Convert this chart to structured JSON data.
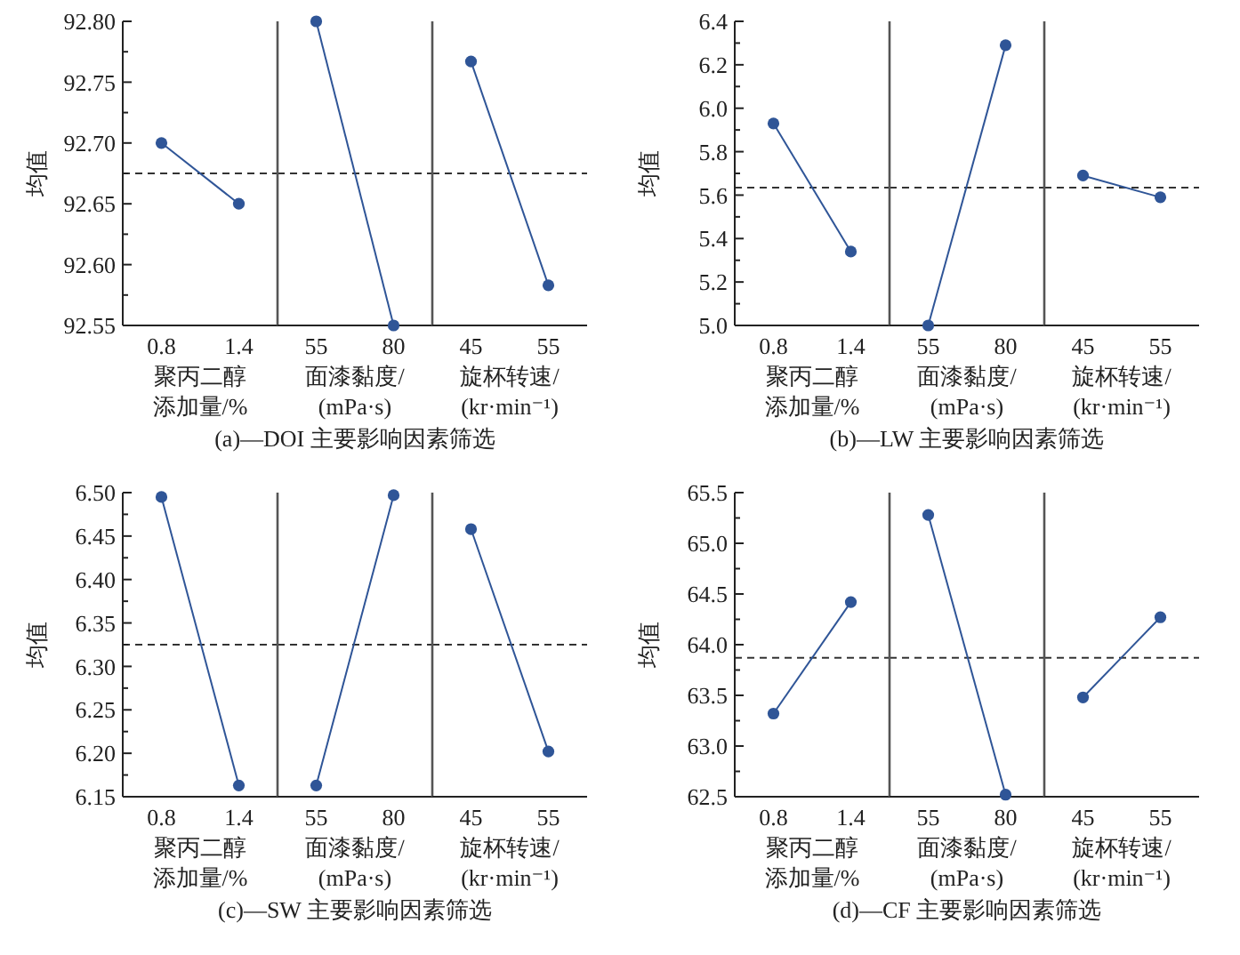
{
  "chart_data": [
    {
      "type": "line",
      "categories": [
        "0.8",
        "1.4"
      ],
      "values": [
        92.7,
        92.65
      ],
      "color": "#2f5597",
      "marker": "circle",
      "ylim": [
        92.55,
        92.8
      ],
      "yticks": [
        92.55,
        {
          "value": 92.575,
          "label": null
        },
        {
          "value": 92.6,
          "label": "92.60"
        },
        {
          "value": 92.625,
          "label": null
        },
        92.65,
        {
          "value": 92.675,
          "label": null
        },
        {
          "value": 92.7,
          "label": "92.70"
        },
        {
          "value": 92.725,
          "label": null
        },
        92.75,
        {
          "value": 92.775,
          "label": null
        },
        {
          "value": 92.8,
          "label": "92.80"
        }
      ],
      "ylabel": "均值",
      "xlabel": "聚丙二醇添加量/%",
      "ref_lines": [
        {
          "axis": "y",
          "value": 92.675,
          "color": "#333333",
          "line_style": "dashed"
        }
      ]
    },
    {
      "type": "line",
      "categories": [
        "55",
        "80"
      ],
      "values": [
        92.8,
        92.55
      ],
      "color": "#2f5597",
      "marker": "circle",
      "ylim": [
        92.55,
        92.8
      ],
      "tick_labels": "x",
      "xlabel": "面漆黏度/(mPa·s)",
      "annotations": [
        "(a)—DOI 主要影响因素筛选"
      ],
      "ref_lines": [
        {
          "axis": "y",
          "value": 92.675,
          "color": "#333333",
          "line_style": "dashed"
        }
      ]
    },
    {
      "type": "line",
      "categories": [
        "45",
        "55"
      ],
      "values": [
        92.767,
        92.583
      ],
      "color": "#2f5597",
      "marker": "circle",
      "ylim": [
        92.55,
        92.8
      ],
      "tick_labels": "x",
      "xlabel": "旋杯转速/(kr·min⁻¹)",
      "ref_lines": [
        {
          "axis": "y",
          "value": 92.675,
          "color": "#333333",
          "line_style": "dashed"
        }
      ]
    },
    {
      "type": "line",
      "categories": [
        "0.8",
        "1.4"
      ],
      "values": [
        5.93,
        5.34
      ],
      "color": "#2f5597",
      "marker": "circle",
      "ylim": [
        5.0,
        6.4
      ],
      "yticks": [
        {
          "value": 5.0,
          "label": "5.0"
        },
        {
          "value": 5.1,
          "label": null
        },
        5.2,
        {
          "value": 5.3,
          "label": null
        },
        5.4,
        {
          "value": 5.5,
          "label": null
        },
        5.6,
        {
          "value": 5.7,
          "label": null
        },
        5.8,
        {
          "value": 5.9,
          "label": null
        },
        {
          "value": 6.0,
          "label": "6.0"
        },
        {
          "value": 6.1,
          "label": null
        },
        6.2,
        {
          "value": 6.3,
          "label": null
        },
        6.4
      ],
      "ylabel": "均值",
      "xlabel": "聚丙二醇添加量/%",
      "ref_lines": [
        {
          "axis": "y",
          "value": 5.635,
          "color": "#333333",
          "line_style": "dashed"
        }
      ]
    },
    {
      "type": "line",
      "categories": [
        "55",
        "80"
      ],
      "values": [
        5.0,
        6.29
      ],
      "color": "#2f5597",
      "marker": "circle",
      "ylim": [
        5.0,
        6.4
      ],
      "tick_labels": "x",
      "xlabel": "面漆黏度/(mPa·s)",
      "annotations": [
        "(b)—LW 主要影响因素筛选"
      ],
      "ref_lines": [
        {
          "axis": "y",
          "value": 5.635,
          "color": "#333333",
          "line_style": "dashed"
        }
      ]
    },
    {
      "type": "line",
      "categories": [
        "45",
        "55"
      ],
      "values": [
        5.69,
        5.59
      ],
      "color": "#2f5597",
      "marker": "circle",
      "ylim": [
        5.0,
        6.4
      ],
      "tick_labels": "x",
      "xlabel": "旋杯转速/(kr·min⁻¹)",
      "ref_lines": [
        {
          "axis": "y",
          "value": 5.635,
          "color": "#333333",
          "line_style": "dashed"
        }
      ]
    },
    {
      "type": "line",
      "categories": [
        "0.8",
        "1.4"
      ],
      "values": [
        6.495,
        6.163
      ],
      "color": "#2f5597",
      "marker": "circle",
      "ylim": [
        6.15,
        6.5
      ],
      "yticks": [
        6.15,
        {
          "value": 6.175,
          "label": null
        },
        {
          "value": 6.2,
          "label": "6.20"
        },
        {
          "value": 6.225,
          "label": null
        },
        6.25,
        {
          "value": 6.275,
          "label": null
        },
        {
          "value": 6.3,
          "label": "6.30"
        },
        {
          "value": 6.325,
          "label": null
        },
        6.35,
        {
          "value": 6.375,
          "label": null
        },
        {
          "value": 6.4,
          "label": "6.40"
        },
        {
          "value": 6.425,
          "label": null
        },
        6.45,
        {
          "value": 6.475,
          "label": null
        },
        {
          "value": 6.5,
          "label": "6.50"
        }
      ],
      "ylabel": "均值",
      "xlabel": "聚丙二醇添加量/%",
      "ref_lines": [
        {
          "axis": "y",
          "value": 6.325,
          "color": "#333333",
          "line_style": "dashed"
        }
      ]
    },
    {
      "type": "line",
      "categories": [
        "55",
        "80"
      ],
      "values": [
        6.163,
        6.497
      ],
      "color": "#2f5597",
      "marker": "circle",
      "ylim": [
        6.15,
        6.5
      ],
      "tick_labels": "x",
      "xlabel": "面漆黏度/(mPa·s)",
      "annotations": [
        "(c)—SW 主要影响因素筛选"
      ],
      "ref_lines": [
        {
          "axis": "y",
          "value": 6.325,
          "color": "#333333",
          "line_style": "dashed"
        }
      ]
    },
    {
      "type": "line",
      "categories": [
        "45",
        "55"
      ],
      "values": [
        6.458,
        6.202
      ],
      "color": "#2f5597",
      "marker": "circle",
      "ylim": [
        6.15,
        6.5
      ],
      "tick_labels": "x",
      "xlabel": "旋杯转速/(kr·min⁻¹)",
      "ref_lines": [
        {
          "axis": "y",
          "value": 6.325,
          "color": "#333333",
          "line_style": "dashed"
        }
      ]
    },
    {
      "type": "line",
      "categories": [
        "0.8",
        "1.4"
      ],
      "values": [
        63.32,
        64.42
      ],
      "color": "#2f5597",
      "marker": "circle",
      "ylim": [
        62.5,
        65.5
      ],
      "yticks": [
        62.5,
        {
          "value": 62.75,
          "label": null
        },
        {
          "value": 63.0,
          "label": "63.0"
        },
        {
          "value": 63.25,
          "label": null
        },
        63.5,
        {
          "value": 63.75,
          "label": null
        },
        {
          "value": 64.0,
          "label": "64.0"
        },
        {
          "value": 64.25,
          "label": null
        },
        64.5,
        {
          "value": 64.75,
          "label": null
        },
        {
          "value": 65.0,
          "label": "65.0"
        },
        {
          "value": 65.25,
          "label": null
        },
        65.5
      ],
      "ylabel": "均值",
      "xlabel": "聚丙二醇添加量/%",
      "ref_lines": [
        {
          "axis": "y",
          "value": 63.87,
          "color": "#333333",
          "line_style": "dashed"
        }
      ]
    },
    {
      "type": "line",
      "categories": [
        "55",
        "80"
      ],
      "values": [
        65.28,
        62.52
      ],
      "color": "#2f5597",
      "marker": "circle",
      "ylim": [
        62.5,
        65.5
      ],
      "tick_labels": "x",
      "xlabel": "面漆黏度/(mPa·s)",
      "annotations": [
        "(d)—CF 主要影响因素筛选"
      ],
      "ref_lines": [
        {
          "axis": "y",
          "value": 63.87,
          "color": "#333333",
          "line_style": "dashed"
        }
      ]
    },
    {
      "type": "line",
      "categories": [
        "45",
        "55"
      ],
      "values": [
        63.48,
        64.27
      ],
      "color": "#2f5597",
      "marker": "circle",
      "ylim": [
        62.5,
        65.5
      ],
      "tick_labels": "x",
      "xlabel": "旋杯转速/(kr·min⁻¹)",
      "ref_lines": [
        {
          "axis": "y",
          "value": 63.87,
          "color": "#333333",
          "line_style": "dashed"
        }
      ]
    }
  ]
}
